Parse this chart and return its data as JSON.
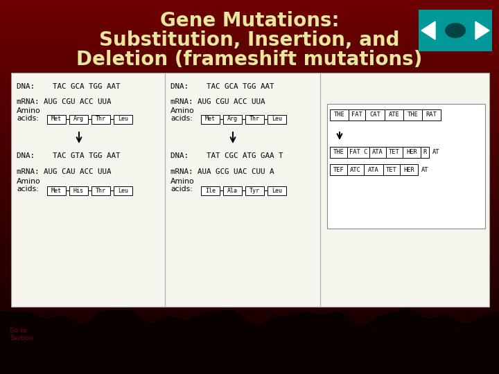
{
  "title_line1": "Gene Mutations:",
  "title_line2": "Substitution, Insertion, and",
  "title_line3": "Deletion (frameshift mutations)",
  "title_color": "#E8E89A",
  "teal_color": "#009999",
  "panel_bg": "#F8F8F4",
  "left_dna1": "DNA:    TAC GCA TGG AAT",
  "left_mrna1": "mRNA: AUG CGU ACC UUA",
  "left_amino1": [
    "Met",
    "Arg",
    "Thr",
    "Leu"
  ],
  "left_dna2": "DNA:    TAC GTA TGG AAT",
  "left_mrna2": "mRNA: AUG CAU ACC UUA",
  "left_amino2": [
    "Met",
    "His",
    "Thr",
    "Leu"
  ],
  "mid_dna1": "DNA:    TAC GCA TGG AAT",
  "mid_mrna1": "mRNA: AUG CGU ACC UUA",
  "mid_amino1": [
    "Met",
    "Arg",
    "Thr",
    "Leu"
  ],
  "mid_dna2": "DNA:    TAT CGC ATG GAA T",
  "mid_mrna2": "mRNA: AUA GCG UAC CUU A",
  "mid_amino2": [
    "Ile",
    "Ala",
    "Tyr",
    "Leu"
  ],
  "r1_words": [
    "THE",
    "FAT",
    "CAT",
    "ATE",
    "THE",
    "RAT"
  ],
  "r2_words": [
    "THE",
    "FAT C",
    "ATA",
    "TET",
    "HER",
    "AT"
  ],
  "r3_words": [
    "TEF",
    "ATC",
    "ATA",
    "TET",
    "HER",
    "AT"
  ]
}
